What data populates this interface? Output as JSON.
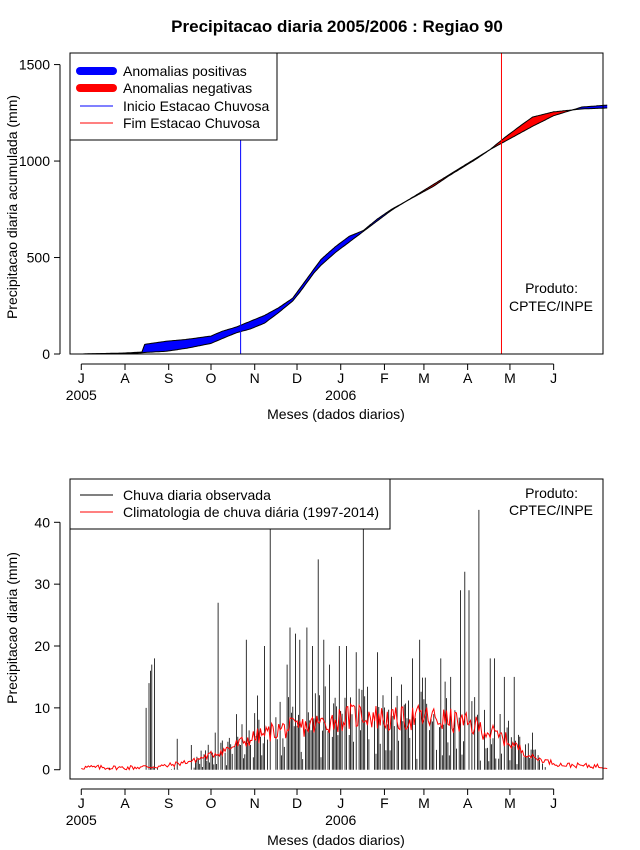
{
  "chart_data": [
    {
      "type": "area",
      "title": "Precipitacao diaria 2005/2006 : Regiao 90",
      "xlabel": "Meses (dados diarios)",
      "ylabel": "Precipitacao diaria acumulada (mm)",
      "x_ticks": [
        "J",
        "A",
        "S",
        "O",
        "N",
        "D",
        "J",
        "F",
        "M",
        "A",
        "M",
        "J"
      ],
      "x_year_labels": [
        "2005",
        "2006"
      ],
      "y_ticks": [
        0,
        500,
        1000,
        1500
      ],
      "ylim": [
        0,
        1560
      ],
      "xlim_days": [
        -8,
        370
      ],
      "legend": {
        "position": "top-left",
        "entries": [
          "Anomalias positivas",
          "Anomalias negativas",
          "Inicio Estacao Chuvosa",
          "Fim Estacao Chuvosa"
        ],
        "colors": [
          "#0000ff",
          "#ff0000",
          "#0000ff",
          "#ff0000"
        ]
      },
      "annotation": [
        "Produto:",
        "CPTEC/INPE"
      ],
      "onset_day": 113,
      "end_day": 298,
      "series": [
        {
          "name": "Observed cumulative",
          "color": "#000000",
          "points": [
            [
              0,
              0
            ],
            [
              30,
              5
            ],
            [
              43,
              10
            ],
            [
              45,
              50
            ],
            [
              60,
              66
            ],
            [
              75,
              76
            ],
            [
              92,
              93
            ],
            [
              100,
              118
            ],
            [
              110,
              140
            ],
            [
              120,
              170
            ],
            [
              130,
              200
            ],
            [
              140,
              240
            ],
            [
              150,
              290
            ],
            [
              155,
              340
            ],
            [
              160,
              390
            ],
            [
              165,
              440
            ],
            [
              170,
              490
            ],
            [
              180,
              555
            ],
            [
              190,
              610
            ],
            [
              200,
              640
            ],
            [
              210,
              700
            ],
            [
              220,
              750
            ],
            [
              230,
              790
            ],
            [
              240,
              830
            ],
            [
              250,
              870
            ],
            [
              260,
              920
            ],
            [
              270,
              965
            ],
            [
              280,
              1010
            ],
            [
              290,
              1060
            ],
            [
              300,
              1100
            ],
            [
              310,
              1140
            ],
            [
              320,
              1180
            ],
            [
              335,
              1235
            ],
            [
              355,
              1280
            ],
            [
              373,
              1290
            ]
          ]
        },
        {
          "name": "Climatology cumulative",
          "color": "#000000",
          "points": [
            [
              0,
              0
            ],
            [
              30,
              3
            ],
            [
              43,
              6
            ],
            [
              45,
              8
            ],
            [
              60,
              14
            ],
            [
              75,
              30
            ],
            [
              92,
              55
            ],
            [
              100,
              80
            ],
            [
              110,
              110
            ],
            [
              120,
              130
            ],
            [
              130,
              160
            ],
            [
              140,
              215
            ],
            [
              150,
              275
            ],
            [
              155,
              320
            ],
            [
              160,
              370
            ],
            [
              165,
              420
            ],
            [
              170,
              460
            ],
            [
              180,
              525
            ],
            [
              190,
              580
            ],
            [
              200,
              635
            ],
            [
              210,
              690
            ],
            [
              220,
              745
            ],
            [
              230,
              790
            ],
            [
              240,
              835
            ],
            [
              250,
              880
            ],
            [
              260,
              925
            ],
            [
              270,
              970
            ],
            [
              280,
              1015
            ],
            [
              290,
              1060
            ],
            [
              300,
              1120
            ],
            [
              310,
              1175
            ],
            [
              320,
              1228
            ],
            [
              335,
              1255
            ],
            [
              355,
              1270
            ],
            [
              373,
              1275
            ]
          ]
        }
      ]
    },
    {
      "type": "bar",
      "title": "",
      "xlabel": "Meses (dados diarios)",
      "ylabel": "Precipitacao diaria (mm)",
      "x_ticks": [
        "J",
        "A",
        "S",
        "O",
        "N",
        "D",
        "J",
        "F",
        "M",
        "A",
        "M",
        "J"
      ],
      "x_year_labels": [
        "2005",
        "2006"
      ],
      "y_ticks": [
        0,
        10,
        20,
        30,
        40
      ],
      "ylim": [
        -1.5,
        47
      ],
      "xlim_days": [
        -8,
        370
      ],
      "legend": {
        "position": "top-left",
        "entries": [
          "Chuva diaria observada",
          "Climatologia de chuva diária (1997-2014)"
        ],
        "colors": [
          "#000000",
          "#ff0000"
        ]
      },
      "annotation": [
        "Produto:",
        "CPTEC/INPE"
      ],
      "series": [
        {
          "name": "Chuva diaria observada",
          "color": "#000000",
          "peaks": [
            [
              46,
              10
            ],
            [
              48,
              14
            ],
            [
              49,
              16
            ],
            [
              50,
              17
            ],
            [
              52,
              18
            ],
            [
              68,
              5
            ],
            [
              78,
              4
            ],
            [
              95,
              6
            ],
            [
              97,
              27
            ],
            [
              110,
              9
            ],
            [
              113,
              4
            ],
            [
              117,
              21
            ],
            [
              125,
              12
            ],
            [
              130,
              20
            ],
            [
              134,
              41
            ],
            [
              146,
              17
            ],
            [
              148,
              23
            ],
            [
              152,
              22
            ],
            [
              155,
              21
            ],
            [
              160,
              23
            ],
            [
              164,
              20
            ],
            [
              168,
              34
            ],
            [
              172,
              21
            ],
            [
              176,
              17
            ],
            [
              183,
              20
            ],
            [
              188,
              20
            ],
            [
              195,
              19
            ],
            [
              200,
              44
            ],
            [
              210,
              19
            ],
            [
              220,
              15
            ],
            [
              235,
              18
            ],
            [
              240,
              21
            ],
            [
              250,
              9
            ],
            [
              255,
              18
            ],
            [
              262,
              15
            ],
            [
              269,
              29
            ],
            [
              272,
              32
            ],
            [
              275,
              29
            ],
            [
              282,
              42
            ],
            [
              290,
              18
            ],
            [
              293,
              18
            ],
            [
              300,
              15
            ],
            [
              307,
              15
            ],
            [
              320,
              6
            ],
            [
              332,
              5
            ],
            [
              346,
              1
            ]
          ]
        },
        {
          "name": "Climatologia de chuva diária (1997-2014)",
          "color": "#ff0000",
          "points": [
            [
              0,
              0.4
            ],
            [
              30,
              0.3
            ],
            [
              60,
              0.6
            ],
            [
              80,
              1.5
            ],
            [
              100,
              3
            ],
            [
              120,
              5
            ],
            [
              140,
              6.5
            ],
            [
              160,
              7
            ],
            [
              180,
              8
            ],
            [
              200,
              9
            ],
            [
              220,
              8
            ],
            [
              240,
              8.5
            ],
            [
              260,
              8
            ],
            [
              280,
              7
            ],
            [
              300,
              5
            ],
            [
              320,
              2
            ],
            [
              340,
              0.8
            ],
            [
              373,
              0.5
            ]
          ]
        }
      ]
    }
  ]
}
